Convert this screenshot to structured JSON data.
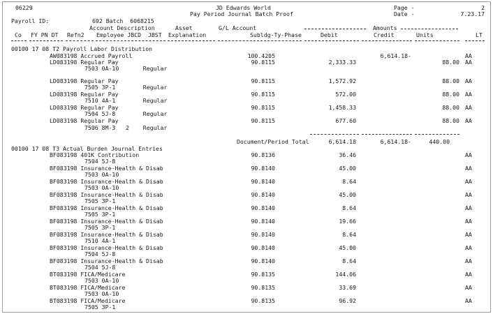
{
  "header": {
    "report_id": "06229",
    "company": "JD Edwards World",
    "title": "Pay Period Journal Batch Proof",
    "page_label": "Page -",
    "page_value": "2",
    "date_label": "Date -",
    "date_value": "7.23.17",
    "payroll_id_label": "Payroll ID:",
    "batch_text": "692 Batch  6068215"
  },
  "columns": {
    "row1": {
      "account_description": "Account Description",
      "asset": "Asset",
      "gl_account": "G/L Account",
      "amounts": "Amounts"
    },
    "row2": {
      "co": "Co",
      "fy_pn_dt": "FY PN DT",
      "refn2": "Refn2",
      "employee_jbcd_jbst": "Employee JBCD  JBST",
      "explanation": "Explanation",
      "subldg": "Subldg-Ty-Phase",
      "debit": "Debit",
      "credit": "Credit",
      "units": "Units",
      "lt": "LT"
    }
  },
  "sections": [
    {
      "heading": "00100 17 08 T2 Payroll Labor Distribution",
      "lines": [
        {
          "ref": "AW083198 Accrued Payroll",
          "detail": "",
          "account": "100.4205",
          "debit": "",
          "credit": "6,614.18-",
          "units": "",
          "lt": "AA"
        },
        {
          "ref": "LD083198 Regular Pay",
          "detail": "7503 0A-10       Regular",
          "account": "90.8115",
          "debit": "2,333.33",
          "credit": "",
          "units": "88.00",
          "lt": "AA"
        },
        {
          "ref": "LD083198 Regular Pay",
          "detail": "7505 3P-1        Regular",
          "account": "90.8115",
          "debit": "1,572.92",
          "credit": "",
          "units": "88.00",
          "lt": "AA"
        },
        {
          "ref": "LD083198 Regular Pay",
          "detail": "7510 4A-1        Regular",
          "account": "90.8115",
          "debit": "572.00",
          "credit": "",
          "units": "88.00",
          "lt": "AA"
        },
        {
          "ref": "LD083198 Regular Pay",
          "detail": "7504 5J-8        Regular",
          "account": "90.8115",
          "debit": "1,458.33",
          "credit": "",
          "units": "88.00",
          "lt": "AA"
        },
        {
          "ref": "LD083198 Regular Pay",
          "detail": "7506 8M-3   2    Regular",
          "account": "90.8115",
          "debit": "677.60",
          "credit": "",
          "units": "88.00",
          "lt": "AA"
        }
      ],
      "total": {
        "label": "Document/Period Total",
        "debit": "6,614.18",
        "credit": "6,614.18-",
        "units": "440.00"
      }
    },
    {
      "heading": "00100 17 08 T3 Actual Burden Journal Entries",
      "lines": [
        {
          "ref": "BF083198 401K Contribution",
          "detail": "7504 5J-8",
          "account": "90.8136",
          "debit": "36.46",
          "lt": "AA"
        },
        {
          "ref": "BF083198 Insurance-Health & Disab",
          "detail": "7503 0A-10",
          "account": "90.8140",
          "debit": "45.00",
          "lt": "AA"
        },
        {
          "ref": "BF083198 Insurance-Health & Disab",
          "detail": "7503 0A-10",
          "account": "90.8140",
          "debit": "8.64",
          "lt": "AA"
        },
        {
          "ref": "BF083198 Insurance-Health & Disab",
          "detail": "7505 3P-1",
          "account": "90.8140",
          "debit": "45.00",
          "lt": "AA"
        },
        {
          "ref": "BF083198 Insurance-Health & Disab",
          "detail": "7505 3P-1",
          "account": "90.8140",
          "debit": "8.64",
          "lt": "AA"
        },
        {
          "ref": "BF083198 Insurance-Health & Disab",
          "detail": "7505 3P-1",
          "account": "90.8140",
          "debit": "19.66",
          "lt": "AA"
        },
        {
          "ref": "BF083198 Insurance-Health & Disab",
          "detail": "7510 4A-1",
          "account": "90.8140",
          "debit": "8.64",
          "lt": "AA"
        },
        {
          "ref": "BF083198 Insurance-Health & Disab",
          "detail": "7504 5J-8",
          "account": "90.8140",
          "debit": "45.00",
          "lt": "AA"
        },
        {
          "ref": "BF083198 Insurance-Health & Disab",
          "detail": "7504 5J-8",
          "account": "90.8140",
          "debit": "8.64",
          "lt": "AA"
        },
        {
          "ref": "BT083198 FICA/Medicare",
          "detail": "7503 0A-10",
          "account": "90.8135",
          "debit": "144.06",
          "lt": "AA"
        },
        {
          "ref": "BT083198 FICA/Medicare",
          "detail": "7503 0A-10",
          "account": "90.8135",
          "debit": "33.69",
          "lt": "AA"
        },
        {
          "ref": "BT083198 FICA/Medicare",
          "detail": "7505 3P-1",
          "account": "90.8135",
          "debit": "96.92",
          "lt": "AA"
        }
      ]
    }
  ]
}
